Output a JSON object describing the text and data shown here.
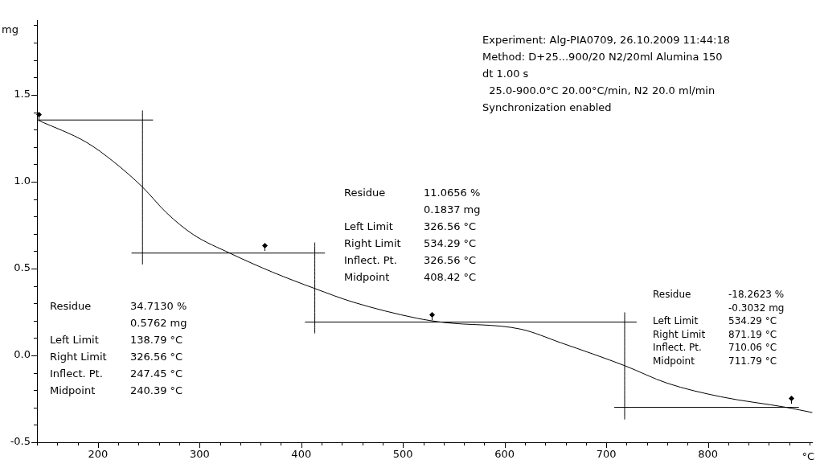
{
  "chart_data": {
    "type": "line",
    "xlabel": "°C",
    "ylabel": "mg",
    "xlim": [
      140,
      903
    ],
    "ylim": [
      -0.5,
      1.93
    ],
    "xticks": [
      {
        "value": 140,
        "label": null
      },
      {
        "value": 160,
        "label": null
      },
      {
        "value": 180,
        "label": null
      },
      200,
      {
        "value": 220,
        "label": null
      },
      {
        "value": 240,
        "label": null
      },
      {
        "value": 260,
        "label": null
      },
      {
        "value": 280,
        "label": null
      },
      300,
      {
        "value": 320,
        "label": null
      },
      {
        "value": 340,
        "label": null
      },
      {
        "value": 360,
        "label": null
      },
      {
        "value": 380,
        "label": null
      },
      400,
      {
        "value": 420,
        "label": null
      },
      {
        "value": 440,
        "label": null
      },
      {
        "value": 460,
        "label": null
      },
      {
        "value": 480,
        "label": null
      },
      500,
      {
        "value": 520,
        "label": null
      },
      {
        "value": 540,
        "label": null
      },
      {
        "value": 560,
        "label": null
      },
      {
        "value": 580,
        "label": null
      },
      600,
      {
        "value": 620,
        "label": null
      },
      {
        "value": 640,
        "label": null
      },
      {
        "value": 660,
        "label": null
      },
      {
        "value": 680,
        "label": null
      },
      700,
      {
        "value": 720,
        "label": null
      },
      {
        "value": 740,
        "label": null
      },
      {
        "value": 760,
        "label": null
      },
      {
        "value": 780,
        "label": null
      },
      800,
      {
        "value": 820,
        "label": null
      },
      {
        "value": 840,
        "label": null
      },
      {
        "value": 860,
        "label": null
      },
      {
        "value": 880,
        "label": null
      },
      {
        "value": 900,
        "label": null
      }
    ],
    "yticks": [
      {
        "value": -0.5,
        "label": "-0.5"
      },
      {
        "value": -0.4,
        "label": null
      },
      {
        "value": -0.3,
        "label": null
      },
      {
        "value": -0.2,
        "label": null
      },
      {
        "value": -0.1,
        "label": null
      },
      {
        "value": 0,
        "label": "0.0"
      },
      {
        "value": 0.1,
        "label": null
      },
      {
        "value": 0.2,
        "label": null
      },
      {
        "value": 0.3,
        "label": null
      },
      {
        "value": 0.4,
        "label": null
      },
      {
        "value": 0.5,
        "label": "0.5"
      },
      {
        "value": 0.6,
        "label": null
      },
      {
        "value": 0.7,
        "label": null
      },
      {
        "value": 0.8,
        "label": null
      },
      {
        "value": 0.9,
        "label": null
      },
      {
        "value": 1,
        "label": "1.0"
      },
      {
        "value": 1.1,
        "label": null
      },
      {
        "value": 1.2,
        "label": null
      },
      {
        "value": 1.3,
        "label": null
      },
      {
        "value": 1.4,
        "label": null
      },
      {
        "value": 1.5,
        "label": "1.5"
      },
      {
        "value": 1.6,
        "label": null
      },
      {
        "value": 1.7,
        "label": null
      },
      {
        "value": 1.8,
        "label": null
      },
      {
        "value": 1.9,
        "label": null
      }
    ],
    "grid": false,
    "legend": false,
    "marker": "none",
    "line_style": "solid",
    "series": [
      {
        "color": "#000000",
        "x": [
          141,
          188.8,
          214.9,
          243.8,
          267.4,
          293.6,
          330.3,
          372.2,
          413.3,
          450.8,
          513.7,
          539.9,
          616,
          655.2,
          718.1,
          760,
          812.7,
          878,
          902.8
        ],
        "values": [
          1.354,
          1.226,
          1.117,
          0.969,
          0.821,
          0.696,
          0.587,
          0.478,
          0.385,
          0.307,
          0.214,
          0.19,
          0.151,
          0.073,
          -0.059,
          -0.16,
          -0.238,
          -0.3,
          -0.329
        ]
      },
      {
        "color": "#000000",
        "x": [
          141,
          254.2
        ],
        "values": [
          1.355,
          1.355
        ]
      },
      {
        "type": "line",
        "color": "#000000",
        "x": [
          243.8,
          243.8
        ],
        "values": [
          1.41,
          0.523
        ]
      },
      {
        "type": "line",
        "color": "#000000",
        "x": [
          233,
          423.3
        ],
        "values": [
          0.589,
          0.589
        ]
      },
      {
        "type": "line",
        "color": "#000000",
        "x": [
          413.3,
          413.3
        ],
        "values": [
          0.65,
          0.126
        ]
      },
      {
        "type": "line",
        "color": "#000000",
        "x": [
          403.6,
          729.9
        ],
        "values": [
          0.192,
          0.192
        ]
      },
      {
        "type": "line",
        "color": "#000000",
        "x": [
          718.1,
          718.1
        ],
        "values": [
          0.248,
          -0.369
        ]
      },
      {
        "type": "line",
        "color": "#000000",
        "x": [
          707.9,
          889.5
        ],
        "values": [
          -0.299,
          -0.299
        ]
      }
    ],
    "annotations": [
      "Experiment: Alg-PIA0709, 26.10.2009 11:44:18\nMethod: D+25...900/20 N2/20ml Alumina 150\ndt 1.00 s\n  25.0-900.0°C 20.00°C/min, N2 20.0 ml/min\nSynchronization enabled",
      "Residue\t34.7130 %\n\t0.5762 mg\nLeft Limit\t138.79 °C\nRight Limit\t326.56 °C\nInflect. Pt.\t247.45 °C\nMidpoint\t240.39 °C",
      "Residue\t11.0656 %\n\t0.1837 mg\nLeft Limit\t326.56 °C\nRight Limit\t534.29 °C\nInflect. Pt.\t326.56 °C\nMidpoint\t408.42 °C",
      "Residue\t-18.2623 %\n\t-0.3032 mg\nLeft Limit\t534.29 °C\nRight Limit\t871.19 °C\nInflect. Pt.\t710.06 °C\nMidpoint\t711.79 °C"
    ]
  }
}
